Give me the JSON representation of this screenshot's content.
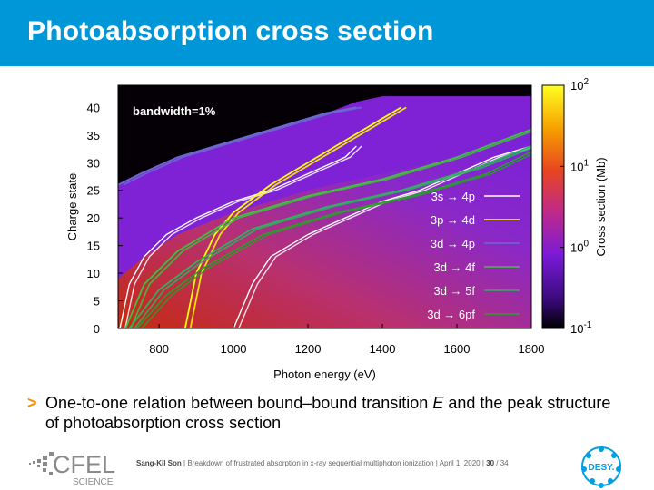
{
  "title": "Photoabsorption cross section",
  "bullet": {
    "marker": ">",
    "text_before": "One-to-one relation between bound–bound transition ",
    "text_italic": "E",
    "text_after": " and the peak structure of photoabsorption cross section"
  },
  "footer": {
    "author": "Sang-Kil Son",
    "separator1": " | ",
    "talk": "Breakdown of frustrated absorption in x-ray sequential multiphoton ionization",
    "separator2": " | ",
    "date": "April 1, 2020",
    "separator3": " | ",
    "page": "30",
    "page_total": " / 34"
  },
  "logos": {
    "cfel_main": "CFEL",
    "cfel_sub": "SCIENCE",
    "desy": "DESY."
  },
  "colors": {
    "title_bar": "#0097d8",
    "bullet_marker": "#f39200"
  },
  "chart_data": {
    "type": "heatmap",
    "title": "",
    "xlabel": "Photon energy (eV)",
    "ylabel": "Charge state",
    "xlim": [
      690,
      1800
    ],
    "ylim": [
      0,
      44
    ],
    "xticks": [
      800,
      1000,
      1200,
      1400,
      1600,
      1800
    ],
    "yticks": [
      0,
      5,
      10,
      15,
      20,
      25,
      30,
      35,
      40
    ],
    "annotation": "bandwidth=1%",
    "colorbar": {
      "label": "Cross section (Mb)",
      "scale": "log",
      "range": [
        0.1,
        100
      ],
      "tick_base": [
        "10",
        "10",
        "10",
        "10"
      ],
      "tick_exp": [
        "2",
        "1",
        "0",
        "-1"
      ],
      "tick_values": [
        100,
        10,
        1,
        0.1
      ]
    },
    "background_description_values": {
      "low_charge_region_cross_section_Mb": 2,
      "high_charge_region_cross_section_Mb": 0.3
    },
    "series": [
      {
        "name": "3s → 4p",
        "color": "#ffffff",
        "width": 1.4,
        "x": [
          695,
          720,
          760,
          820,
          900,
          1000,
          1100,
          1200,
          1300,
          1330
        ],
        "y": [
          0,
          8,
          13,
          17,
          20,
          23,
          25,
          28,
          31,
          33
        ]
      },
      {
        "name": "3s → 4p",
        "color": "#ffffff",
        "width": 1.4,
        "x": [
          1000,
          1050,
          1100,
          1200,
          1300,
          1400,
          1500,
          1600,
          1700,
          1800
        ],
        "y": [
          0,
          8,
          13,
          17,
          20,
          23,
          25,
          28,
          31,
          33
        ]
      },
      {
        "name": "3p → 4d",
        "color": "#ffff00",
        "width": 1.8,
        "x": [
          870,
          900,
          950,
          1000,
          1100,
          1200,
          1300,
          1400,
          1450
        ],
        "y": [
          0,
          10,
          17,
          21,
          26,
          30,
          34,
          38,
          40
        ]
      },
      {
        "name": "3d → 4p",
        "color": "#6a6ad0",
        "width": 1.8,
        "x": [
          690,
          750,
          850,
          950,
          1050,
          1150,
          1250,
          1330
        ],
        "y": [
          26,
          28,
          31,
          33,
          35,
          37,
          39,
          40
        ]
      },
      {
        "name": "3d → 4f",
        "color": "#40c040",
        "width": 1.8,
        "x": [
          710,
          760,
          850,
          1000,
          1200,
          1400,
          1600,
          1800
        ],
        "y": [
          0,
          8,
          14,
          20,
          24,
          27,
          31,
          36
        ]
      },
      {
        "name": "3d → 5f",
        "color": "#30b060",
        "width": 1.8,
        "x": [
          720,
          800,
          900,
          1050,
          1250,
          1450,
          1650,
          1800
        ],
        "y": [
          0,
          7,
          12,
          18,
          22,
          25,
          29,
          33
        ]
      },
      {
        "name": "3d → 6pf",
        "color": "#28a028",
        "width": 1.6,
        "x": [
          740,
          820,
          920,
          1080,
          1280,
          1480,
          1680,
          1800
        ],
        "y": [
          0,
          6,
          11,
          17,
          21,
          24,
          28,
          32
        ]
      }
    ],
    "legend": {
      "placement": "bottom-right inside plot",
      "entries": [
        {
          "label": "3s → 4p",
          "color": "#ffffff"
        },
        {
          "label": "3p → 4d",
          "color": "#ffff00"
        },
        {
          "label": "3d → 4p",
          "color": "#6a6ad0"
        },
        {
          "label": "3d → 4f",
          "color": "#40c040"
        },
        {
          "label": "3d → 5f",
          "color": "#30b060"
        },
        {
          "label": "3d → 6pf",
          "color": "#28a028"
        }
      ]
    }
  }
}
